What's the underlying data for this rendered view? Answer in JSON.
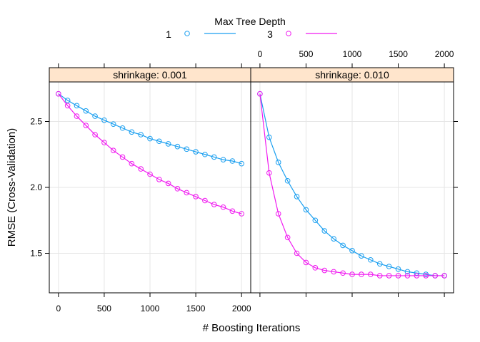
{
  "chart_data": {
    "type": "line",
    "xlabel": "# Boosting Iterations",
    "ylabel": "RMSE (Cross-Validation)",
    "legend": {
      "title": "Max Tree Depth",
      "placement": "top",
      "entries": [
        {
          "label": "1",
          "color": "#1a9ff0"
        },
        {
          "label": "3",
          "color": "#f019f0"
        }
      ]
    },
    "xlim": [
      -100,
      2100
    ],
    "ylim": [
      1.2,
      2.8
    ],
    "x_ticks": [
      0,
      500,
      1000,
      1500,
      2000
    ],
    "x_tick_labels": [
      "0",
      "500",
      "1000",
      "1500",
      "2000"
    ],
    "y_ticks": [
      1.5,
      2.0,
      2.5
    ],
    "y_tick_labels": [
      "1.5",
      "2.0",
      "2.5"
    ],
    "grid": true,
    "panels": [
      {
        "strip": "shrinkage: 0.001",
        "x": [
          0,
          100,
          200,
          300,
          400,
          500,
          600,
          700,
          800,
          900,
          1000,
          1100,
          1200,
          1300,
          1400,
          1500,
          1600,
          1700,
          1800,
          1900,
          2000
        ],
        "series": [
          {
            "name": "1",
            "color": "#1a9ff0",
            "values": [
              2.71,
              2.66,
              2.62,
              2.58,
              2.54,
              2.51,
              2.48,
              2.45,
              2.42,
              2.4,
              2.37,
              2.35,
              2.33,
              2.31,
              2.29,
              2.27,
              2.25,
              2.23,
              2.21,
              2.2,
              2.18
            ]
          },
          {
            "name": "3",
            "color": "#f019f0",
            "values": [
              2.71,
              2.62,
              2.54,
              2.47,
              2.4,
              2.34,
              2.28,
              2.23,
              2.18,
              2.14,
              2.1,
              2.06,
              2.03,
              1.99,
              1.96,
              1.93,
              1.9,
              1.87,
              1.85,
              1.82,
              1.8
            ]
          }
        ]
      },
      {
        "strip": "shrinkage: 0.010",
        "x": [
          0,
          100,
          200,
          300,
          400,
          500,
          600,
          700,
          800,
          900,
          1000,
          1100,
          1200,
          1300,
          1400,
          1500,
          1600,
          1700,
          1800,
          1900,
          2000
        ],
        "series": [
          {
            "name": "1",
            "color": "#1a9ff0",
            "values": [
              2.71,
              2.38,
              2.19,
              2.05,
              1.93,
              1.83,
              1.75,
              1.67,
              1.61,
              1.56,
              1.52,
              1.48,
              1.45,
              1.42,
              1.4,
              1.38,
              1.36,
              1.35,
              1.34,
              1.33,
              1.33
            ]
          },
          {
            "name": "3",
            "color": "#f019f0",
            "values": [
              2.71,
              2.11,
              1.8,
              1.62,
              1.5,
              1.43,
              1.39,
              1.37,
              1.36,
              1.35,
              1.34,
              1.34,
              1.34,
              1.33,
              1.33,
              1.33,
              1.33,
              1.33,
              1.33,
              1.33,
              1.33
            ]
          }
        ]
      }
    ]
  }
}
